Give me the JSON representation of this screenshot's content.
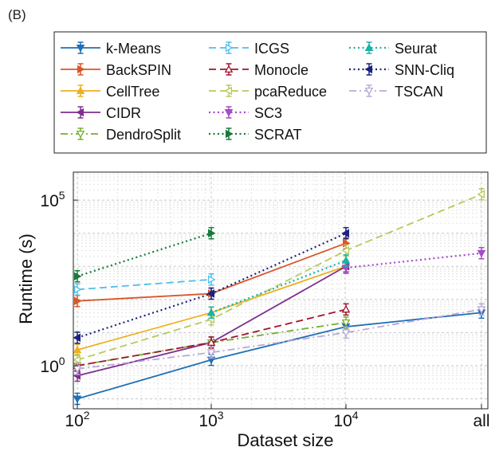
{
  "panel_label": "(B)",
  "chart_data": {
    "type": "line",
    "xlabel": "Dataset size",
    "ylabel": "Runtime (s)",
    "x_scale": "categorical",
    "categories": [
      "10^2",
      "10^3",
      "10^4",
      "all"
    ],
    "x_tick_labels": [
      {
        "base": "10",
        "exp": "2"
      },
      {
        "base": "10",
        "exp": "3"
      },
      {
        "base": "10",
        "exp": "4"
      },
      {
        "base": "all",
        "exp": ""
      }
    ],
    "y_scale": "log",
    "ylim": [
      0.05,
      700000
    ],
    "y_tick_labels": [
      {
        "value": 1,
        "base": "10",
        "exp": "0"
      },
      {
        "value": 100000,
        "base": "10",
        "exp": "5"
      }
    ],
    "grid": true,
    "legend_position": "top",
    "legend_columns": 3,
    "series": [
      {
        "name": "k-Means",
        "color": "#1f6fb5",
        "dash": "solid",
        "marker": "triangle-down",
        "values": [
          0.1,
          1.5,
          15,
          40
        ]
      },
      {
        "name": "BackSPIN",
        "color": "#d9562a",
        "dash": "solid",
        "marker": "triangle-right",
        "values": [
          90,
          150,
          5000,
          null
        ]
      },
      {
        "name": "CellTree",
        "color": "#edb120",
        "dash": "solid",
        "marker": "triangle-up",
        "values": [
          3,
          40,
          1000,
          null
        ]
      },
      {
        "name": "CIDR",
        "color": "#7e2f8e",
        "dash": "solid",
        "marker": "triangle-left",
        "values": [
          0.5,
          5,
          1000,
          null
        ]
      },
      {
        "name": "DendroSplit",
        "color": "#77ac30",
        "dash": "dashdot",
        "marker": "triangle-down",
        "values": [
          1,
          5,
          20,
          null
        ]
      },
      {
        "name": "ICGS",
        "color": "#4dbeee",
        "dash": "dashed",
        "marker": "triangle-right",
        "values": [
          200,
          400,
          null,
          null
        ]
      },
      {
        "name": "Monocle",
        "color": "#a2142f",
        "dash": "dashed",
        "marker": "triangle-up",
        "values": [
          1,
          5,
          50,
          null
        ]
      },
      {
        "name": "pcaReduce",
        "color": "#b8c95a",
        "dash": "dashed",
        "marker": "triangle-left",
        "values": [
          1.5,
          25,
          3000,
          150000
        ]
      },
      {
        "name": "SC3",
        "color": "#a64ac9",
        "dash": "dotted",
        "marker": "triangle-down",
        "values": [
          null,
          null,
          900,
          2500
        ]
      },
      {
        "name": "SCRAT",
        "color": "#177a3a",
        "dash": "dotted",
        "marker": "triangle-right",
        "values": [
          500,
          10000,
          null,
          null
        ]
      },
      {
        "name": "Seurat",
        "color": "#17b3a6",
        "dash": "dotted",
        "marker": "triangle-up",
        "values": [
          null,
          40,
          1500,
          null
        ]
      },
      {
        "name": "SNN-Cliq",
        "color": "#1a237e",
        "dash": "dotted",
        "marker": "triangle-left",
        "values": [
          7,
          150,
          10000,
          null
        ]
      },
      {
        "name": "TSCAN",
        "color": "#b9a9d9",
        "dash": "dashdot",
        "marker": "triangle-down",
        "values": [
          0.8,
          2.5,
          10,
          50
        ]
      }
    ]
  }
}
